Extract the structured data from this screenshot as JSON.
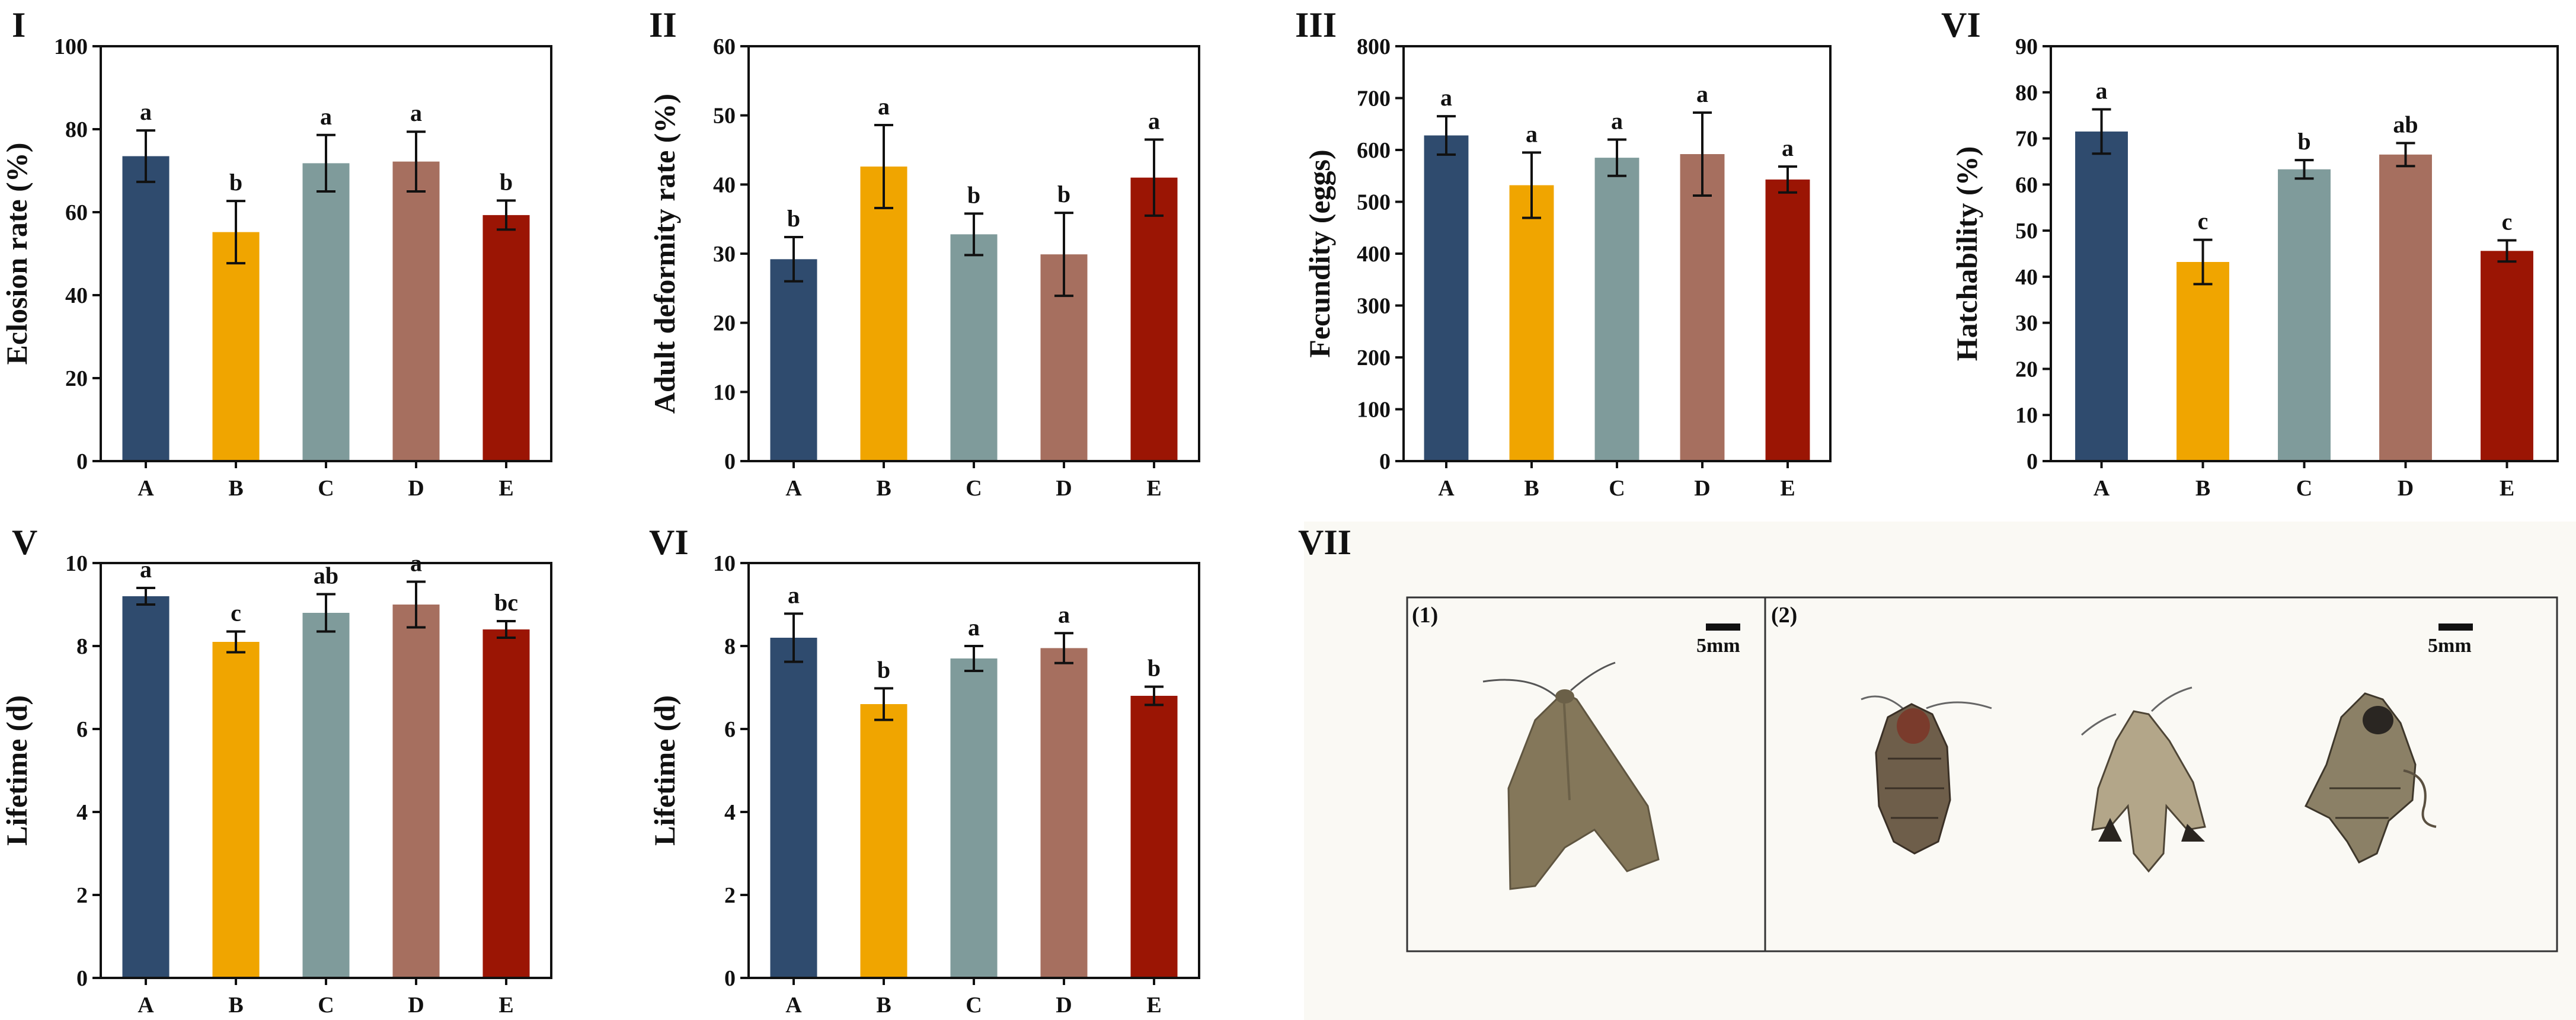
{
  "colors": {
    "A": "#2f4b6e",
    "B": "#f0a500",
    "C": "#7f9b9b",
    "D": "#a66f5f",
    "E": "#9b1504"
  },
  "chart_data": [
    {
      "type": "bar",
      "panel": "I",
      "categories": [
        "A",
        "B",
        "C",
        "D",
        "E"
      ],
      "values": [
        73.5,
        55.2,
        71.8,
        72.2,
        59.3
      ],
      "errors": [
        6.2,
        7.5,
        6.8,
        7.2,
        3.5
      ],
      "significance": [
        "a",
        "b",
        "a",
        "a",
        "b"
      ],
      "ylabel": "Eclosion rate (%)",
      "ylim": [
        0,
        100
      ],
      "yticks": [
        0,
        20,
        40,
        60,
        80,
        100
      ]
    },
    {
      "type": "bar",
      "panel": "II",
      "categories": [
        "A",
        "B",
        "C",
        "D",
        "E"
      ],
      "values": [
        29.2,
        42.6,
        32.8,
        29.9,
        41.0
      ],
      "errors": [
        3.2,
        6.0,
        3.0,
        6.0,
        5.5
      ],
      "significance": [
        "b",
        "a",
        "b",
        "b",
        "a"
      ],
      "ylabel": "Adult deformity rate (%)",
      "ylim": [
        0,
        60
      ],
      "yticks": [
        0,
        10,
        20,
        30,
        40,
        50,
        60
      ]
    },
    {
      "type": "bar",
      "panel": "III",
      "categories": [
        "A",
        "B",
        "C",
        "D",
        "E"
      ],
      "values": [
        628,
        532,
        585,
        592,
        543
      ],
      "errors": [
        37,
        63,
        35,
        80,
        25
      ],
      "significance": [
        "a",
        "a",
        "a",
        "a",
        "a"
      ],
      "ylabel": "Fecundity (eggs)",
      "ylim": [
        0,
        800
      ],
      "yticks": [
        0,
        100,
        200,
        300,
        400,
        500,
        600,
        700,
        800
      ]
    },
    {
      "type": "bar",
      "panel": "VI",
      "categories": [
        "A",
        "B",
        "C",
        "D",
        "E"
      ],
      "values": [
        71.5,
        43.2,
        63.3,
        66.5,
        45.6
      ],
      "errors": [
        4.8,
        4.8,
        2.0,
        2.5,
        2.3
      ],
      "significance": [
        "a",
        "c",
        "b",
        "ab",
        "c"
      ],
      "ylabel": "Hatchability (%)",
      "ylim": [
        0,
        90
      ],
      "yticks": [
        0,
        10,
        20,
        30,
        40,
        50,
        60,
        70,
        80,
        90
      ]
    },
    {
      "type": "bar",
      "panel": "V",
      "categories": [
        "A",
        "B",
        "C",
        "D",
        "E"
      ],
      "values": [
        9.2,
        8.1,
        8.8,
        9.0,
        8.4
      ],
      "errors": [
        0.2,
        0.25,
        0.45,
        0.55,
        0.2
      ],
      "significance": [
        "a",
        "c",
        "ab",
        "a",
        "bc"
      ],
      "ylabel": "Lifetime (d)",
      "ylim": [
        0,
        10
      ],
      "yticks": [
        0,
        2,
        4,
        6,
        8,
        10
      ]
    },
    {
      "type": "bar",
      "panel": "VI",
      "categories": [
        "A",
        "B",
        "C",
        "D",
        "E"
      ],
      "values": [
        8.2,
        6.6,
        7.7,
        7.95,
        6.8
      ],
      "errors": [
        0.58,
        0.38,
        0.3,
        0.36,
        0.22
      ],
      "significance": [
        "a",
        "b",
        "a",
        "a",
        "b"
      ],
      "ylabel": "Lifetime (d)",
      "ylim": [
        0,
        10
      ],
      "yticks": [
        0,
        2,
        4,
        6,
        8,
        10
      ]
    }
  ],
  "photo_panel": {
    "panel": "VII",
    "left_label": "(1)",
    "right_label": "(2)",
    "scale_left": "5mm",
    "scale_right": "5mm"
  }
}
